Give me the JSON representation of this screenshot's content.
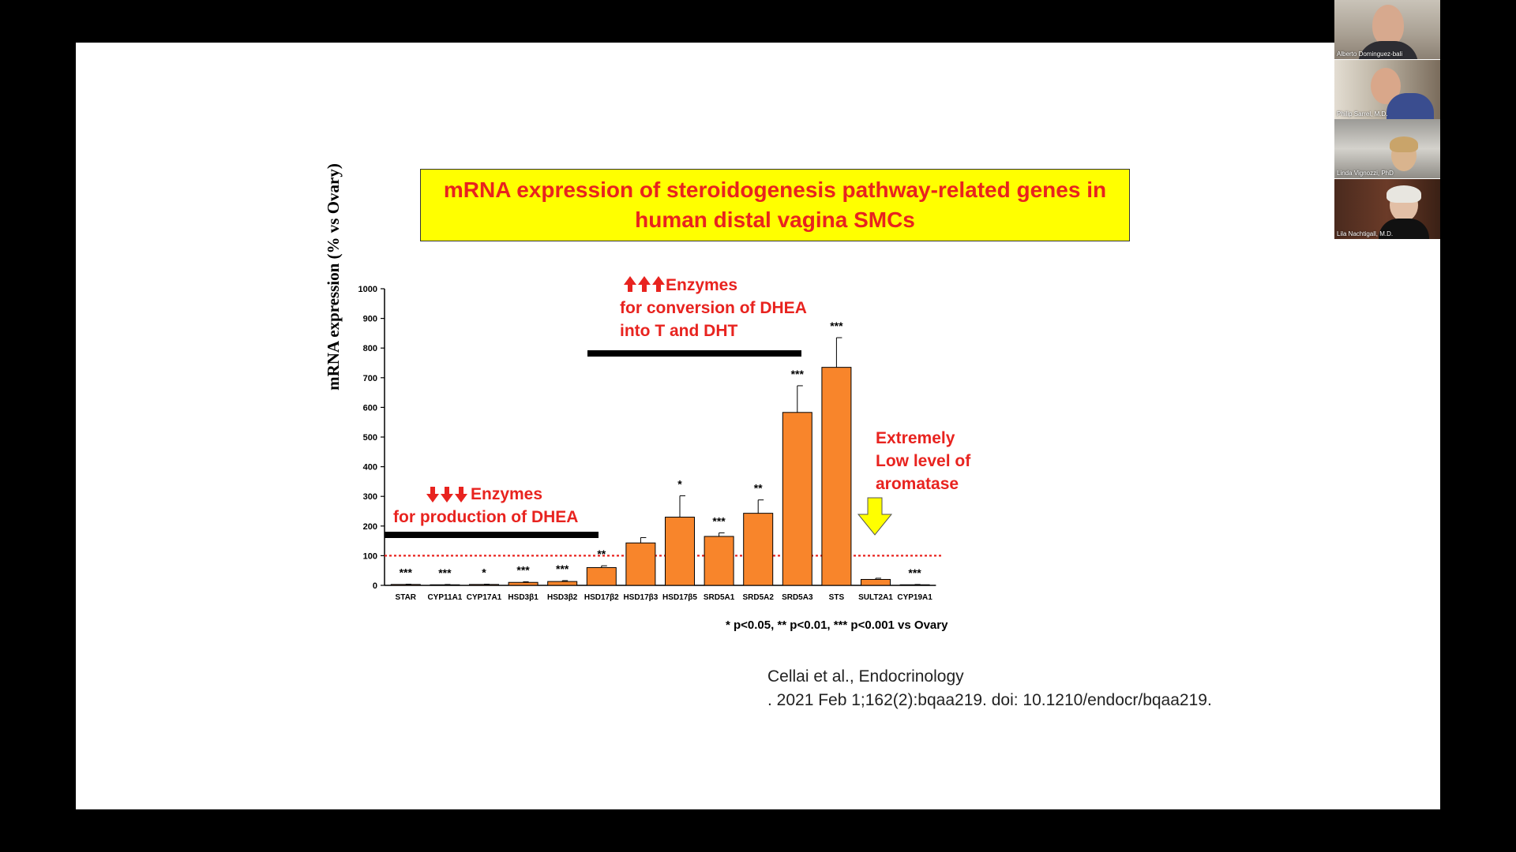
{
  "slide": {
    "title_line1": "mRNA expression of steroidogenesis pathway-related genes in",
    "title_line2": "human distal vagina SMCs",
    "annotation_up_line1": "Enzymes",
    "annotation_up_line2": "for conversion of DHEA",
    "annotation_up_line3": "into T and DHT",
    "annotation_down_line1": "Enzymes",
    "annotation_down_line2": "for production of DHEA",
    "annotation_arom_line1": "Extremely",
    "annotation_arom_line2": "Low level of",
    "annotation_arom_line3": "aromatase",
    "significance_note": "* p<0.05, ** p<0.01, *** p<0.001 vs Ovary",
    "citation_line1": "Cellai et al., Endocrinology",
    "citation_line2": ". 2021 Feb 1;162(2):bqaa219. doi: 10.1210/endocr/bqaa219."
  },
  "participants": [
    {
      "name": "Alberto Dominguez-bali"
    },
    {
      "name": "Philip Sarrel, M.D."
    },
    {
      "name": "Linda Vignozzi, PhD"
    },
    {
      "name": "Lila Nachtigall, M.D."
    }
  ],
  "colors": {
    "bar": "#f8852b",
    "title_bg": "#ffff00",
    "annotation": "#e8231f",
    "reference_line": "#e8231f",
    "arrow_fill": "#ffff00"
  },
  "chart_data": {
    "type": "bar",
    "ylabel": "mRNA expression (% vs Ovary)",
    "ylim": [
      0,
      1000
    ],
    "yticks": [
      0,
      100,
      200,
      300,
      400,
      500,
      600,
      700,
      800,
      900,
      1000
    ],
    "reference_line": 100,
    "categories": [
      "STAR",
      "CYP11A1",
      "CYP17A1",
      "HSD3β1",
      "HSD3β2",
      "HSD17β2",
      "HSD17β3",
      "HSD17β5",
      "SRD5A1",
      "SRD5A2",
      "SRD5A3",
      "STS",
      "SULT2A1",
      "CYP19A1"
    ],
    "values": [
      3,
      2,
      3,
      10,
      13,
      60,
      143,
      230,
      165,
      243,
      583,
      735,
      20,
      2
    ],
    "errors": [
      1,
      1,
      1,
      2,
      3,
      6,
      18,
      72,
      12,
      45,
      90,
      100,
      4,
      1
    ],
    "significance": [
      "***",
      "***",
      "*",
      "***",
      "***",
      "**",
      "",
      "*",
      "***",
      "**",
      "***",
      "***",
      "",
      "***"
    ]
  }
}
